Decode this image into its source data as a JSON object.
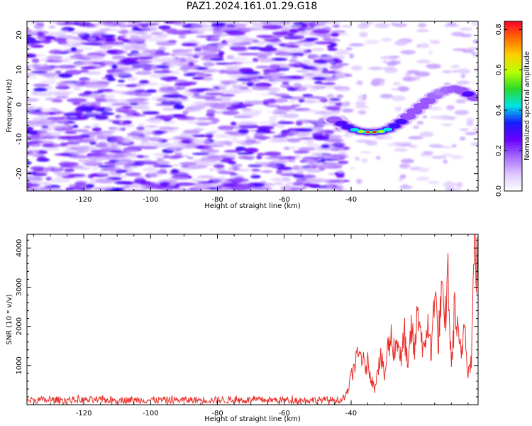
{
  "title": "PAZ1.2024.161.01.29.G18",
  "chart_data": [
    {
      "type": "heatmap",
      "name": "spectrogram",
      "xlabel": "Height of straight line (km)",
      "ylabel": "Frequency (Hz)",
      "xlim": [
        -137,
        -2
      ],
      "ylim": [
        -25,
        24
      ],
      "xticks": [
        -120,
        -100,
        -80,
        -60,
        -40
      ],
      "xtick_labels": [
        "-120",
        "-100",
        "-80",
        "-60",
        "-40"
      ],
      "yticks": [
        -20,
        -10,
        0,
        10,
        20
      ],
      "ytick_labels": [
        "-20",
        "-10",
        "0",
        "10",
        "20"
      ],
      "colorbar": {
        "label": "Normalized spectral amplitude",
        "range": [
          0.0,
          0.84
        ],
        "ticks": [
          0.0,
          0.2,
          0.4,
          0.6,
          0.8
        ],
        "tick_labels": [
          "0.0",
          "0.2",
          "0.4",
          "0.6",
          "0.8"
        ],
        "colors": [
          "#ffffff",
          "#dcc4ff",
          "#a56cff",
          "#6a00ff",
          "#1a1aff",
          "#00e5e5",
          "#2bd92b",
          "#b8ff00",
          "#ffd000",
          "#ff6a00",
          "#ff0030"
        ]
      },
      "signal_track": [
        {
          "x": -45,
          "y": -4.5,
          "amp": 0.18
        },
        {
          "x": -43,
          "y": -5.5,
          "amp": 0.28
        },
        {
          "x": -41,
          "y": -6.5,
          "amp": 0.36
        },
        {
          "x": -39,
          "y": -7.3,
          "amp": 0.48
        },
        {
          "x": -37,
          "y": -7.8,
          "amp": 0.72
        },
        {
          "x": -35,
          "y": -8.0,
          "amp": 0.82
        },
        {
          "x": -33,
          "y": -8.0,
          "amp": 0.84
        },
        {
          "x": -31,
          "y": -7.8,
          "amp": 0.7
        },
        {
          "x": -29,
          "y": -7.2,
          "amp": 0.5
        },
        {
          "x": -27,
          "y": -6.2,
          "amp": 0.38
        },
        {
          "x": -25,
          "y": -5.0,
          "amp": 0.3
        },
        {
          "x": -23,
          "y": -3.5,
          "amp": 0.26
        },
        {
          "x": -21,
          "y": -2.0,
          "amp": 0.22
        },
        {
          "x": -19,
          "y": -0.5,
          "amp": 0.22
        },
        {
          "x": -17,
          "y": 1.0,
          "amp": 0.2
        },
        {
          "x": -15,
          "y": 2.5,
          "amp": 0.17
        },
        {
          "x": -13,
          "y": 3.5,
          "amp": 0.15
        },
        {
          "x": -11,
          "y": 4.2,
          "amp": 0.17
        },
        {
          "x": -9,
          "y": 4.5,
          "amp": 0.18
        },
        {
          "x": -7,
          "y": 4.0,
          "amp": 0.26
        },
        {
          "x": -5,
          "y": 3.0,
          "amp": 0.28
        },
        {
          "x": -3,
          "y": 2.0,
          "amp": 0.24
        }
      ],
      "noise_amp_range": [
        0.0,
        0.1
      ]
    },
    {
      "type": "line",
      "name": "snr",
      "xlabel": "Height of straight line (km)",
      "ylabel": "SNR (10 * v/v)",
      "xlim": [
        -137,
        -2
      ],
      "ylim": [
        0,
        4350
      ],
      "xticks": [
        -120,
        -100,
        -80,
        -60,
        -40
      ],
      "xtick_labels": [
        "-120",
        "-100",
        "-80",
        "-60",
        "-40"
      ],
      "yticks": [
        1000,
        2000,
        3000,
        4000
      ],
      "ytick_labels": [
        "1000",
        "2000",
        "3000",
        "4000"
      ],
      "color": "#e8302a",
      "noise_floor": {
        "x_range": [
          -137,
          -42
        ],
        "mean": 120,
        "spread": 90
      },
      "x": [
        -42,
        -41,
        -40,
        -39,
        -38,
        -37,
        -36,
        -35,
        -34,
        -33,
        -32,
        -31,
        -30,
        -29,
        -28,
        -27,
        -26,
        -25,
        -24,
        -23,
        -22,
        -21,
        -20,
        -19,
        -18,
        -17,
        -16,
        -15,
        -14,
        -13,
        -12,
        -11,
        -10,
        -9,
        -8,
        -7,
        -6,
        -5,
        -4,
        -3,
        -2
      ],
      "y": [
        150,
        350,
        700,
        1000,
        1200,
        1300,
        950,
        1050,
        700,
        400,
        1000,
        1200,
        700,
        1450,
        1700,
        1400,
        1700,
        1100,
        1850,
        800,
        2000,
        1300,
        2500,
        1800,
        1200,
        2300,
        1100,
        3300,
        1500,
        2800,
        2000,
        3300,
        900,
        2500,
        1700,
        1200,
        2300,
        800,
        1200,
        4350,
        3000
      ]
    }
  ]
}
